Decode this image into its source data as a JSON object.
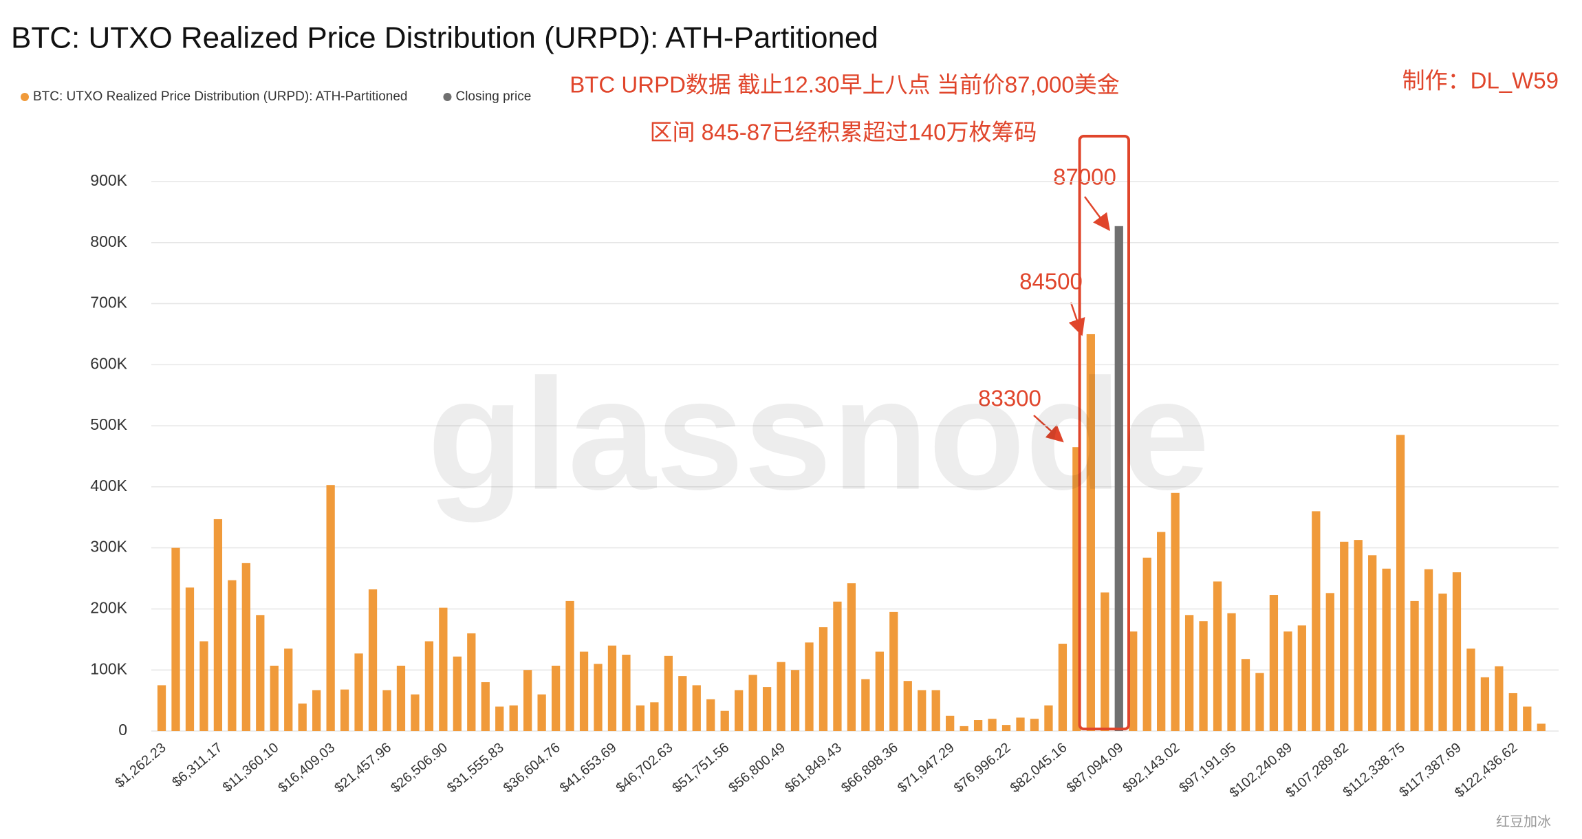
{
  "chart_data": {
    "type": "bar",
    "title": "BTC: UTXO Realized Price Distribution (URPD): ATH-Partitioned",
    "annotations": [
      "BTC URPD数据 截止12.30早上八点 当前价87,000美金",
      "区间 845-87已经积累超过140万枚筹码",
      "制作：DL_W59",
      "87000",
      "84500",
      "83300"
    ],
    "watermark": "glassnode",
    "credit": "红豆加冰",
    "legend": "top-left",
    "grid": true,
    "categories": [
      "$1,262.23",
      null,
      null,
      null,
      "$6,311.17",
      null,
      null,
      null,
      "$11,360.10",
      null,
      null,
      null,
      "$16,409.03",
      null,
      null,
      null,
      "$21,457.96",
      null,
      null,
      null,
      "$26,506.90",
      null,
      null,
      null,
      "$31,555.83",
      null,
      null,
      null,
      "$36,604.76",
      null,
      null,
      null,
      "$41,653.69",
      null,
      null,
      null,
      "$46,702.63",
      null,
      null,
      null,
      "$51,751.56",
      null,
      null,
      null,
      "$56,800.49",
      null,
      null,
      null,
      "$61,849.43",
      null,
      null,
      null,
      "$66,898.36",
      null,
      null,
      null,
      "$71,947.29",
      null,
      null,
      null,
      "$76,996.22",
      null,
      null,
      null,
      "$82,045.16",
      null,
      null,
      null,
      "$87,094.09",
      null,
      null,
      null,
      "$92,143.02",
      null,
      null,
      null,
      "$97,191.95",
      null,
      null,
      null,
      "$102,240.89",
      null,
      null,
      null,
      "$107,289.82",
      null,
      null,
      null,
      "$112,338.75",
      null,
      null,
      null,
      "$117,387.69",
      null,
      null,
      null,
      "$122,436.62",
      null,
      null
    ],
    "series": [
      {
        "name": "BTC: UTXO Realized Price Distribution (URPD): ATH-Partitioned",
        "color": "#f09a3a",
        "values": [
          75000,
          300000,
          235000,
          147000,
          347000,
          247000,
          275000,
          190000,
          107000,
          135000,
          45000,
          67000,
          403000,
          68000,
          127000,
          232000,
          67000,
          107000,
          60000,
          147000,
          202000,
          122000,
          160000,
          80000,
          40000,
          42000,
          100000,
          60000,
          107000,
          213000,
          130000,
          110000,
          140000,
          125000,
          42000,
          47000,
          123000,
          90000,
          75000,
          52000,
          33000,
          67000,
          92000,
          72000,
          113000,
          100000,
          145000,
          170000,
          212000,
          242000,
          85000,
          130000,
          195000,
          82000,
          67000,
          67000,
          25000,
          8000,
          18000,
          20000,
          10000,
          22000,
          20000,
          42000,
          143000,
          465000,
          650000,
          227000,
          null,
          163000,
          284000,
          326000,
          390000,
          190000,
          180000,
          245000,
          193000,
          118000,
          95000,
          223000,
          163000,
          173000,
          360000,
          226000,
          310000,
          313000,
          288000,
          266000,
          485000,
          213000,
          265000,
          225000,
          260000,
          135000,
          88000,
          106000,
          62000,
          40000,
          12000
        ]
      },
      {
        "name": "Closing price",
        "color": "#707070",
        "values": [
          null,
          null,
          null,
          null,
          null,
          null,
          null,
          null,
          null,
          null,
          null,
          null,
          null,
          null,
          null,
          null,
          null,
          null,
          null,
          null,
          null,
          null,
          null,
          null,
          null,
          null,
          null,
          null,
          null,
          null,
          null,
          null,
          null,
          null,
          null,
          null,
          null,
          null,
          null,
          null,
          null,
          null,
          null,
          null,
          null,
          null,
          null,
          null,
          null,
          null,
          null,
          null,
          null,
          null,
          null,
          null,
          null,
          null,
          null,
          null,
          null,
          null,
          null,
          null,
          null,
          null,
          null,
          null,
          827000,
          null,
          null,
          null,
          null,
          null,
          null,
          null,
          null,
          null,
          null,
          null,
          null,
          null,
          null,
          null,
          null,
          null,
          null,
          null,
          null,
          null,
          null,
          null,
          null,
          null,
          null,
          null,
          null,
          null,
          null
        ]
      }
    ],
    "ylim": [
      0,
      900000
    ],
    "yticks": [
      0,
      {
        "value": 100000,
        "label": "100K"
      },
      {
        "value": 200000,
        "label": "200K"
      },
      {
        "value": 300000,
        "label": "300K"
      },
      {
        "value": 400000,
        "label": "400K"
      },
      {
        "value": 500000,
        "label": "500K"
      },
      {
        "value": 600000,
        "label": "600K"
      },
      {
        "value": 700000,
        "label": "700K"
      },
      {
        "value": 800000,
        "label": "800K"
      },
      {
        "value": 900000,
        "label": "900K"
      }
    ]
  }
}
